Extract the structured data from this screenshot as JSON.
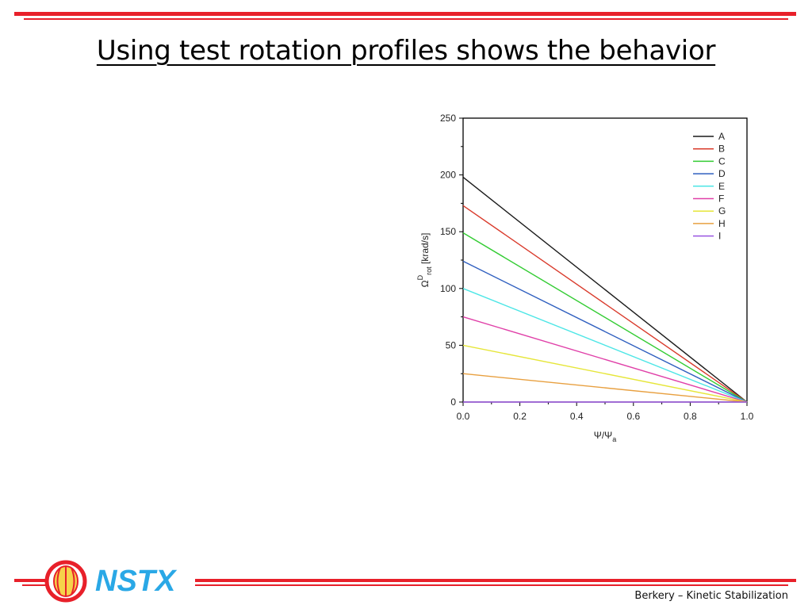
{
  "slide": {
    "title": "Using test rotation profiles shows the behavior",
    "footer_caption": "Berkery – Kinetic Stabilization",
    "logo_text": "NSTX",
    "accent_color": "#e8202a",
    "logo_text_color": "#2aa8e6"
  },
  "chart_data": {
    "type": "line",
    "x_axis": {
      "base": "Ψ/Ψ",
      "sub": "a",
      "range": [
        0.0,
        1.0
      ],
      "ticks": [
        "0.0",
        "0.2",
        "0.4",
        "0.6",
        "0.8",
        "1.0"
      ]
    },
    "y_axis": {
      "base": "Ω",
      "sup": "D",
      "sub": "rot",
      "unit": " [krad/s]",
      "range": [
        0,
        250
      ],
      "ticks": [
        "0",
        "50",
        "100",
        "150",
        "200",
        "250"
      ]
    },
    "grid": false,
    "legend_position": "top-right",
    "x": [
      0.0,
      1.0
    ],
    "series": [
      {
        "name": "A",
        "color": "#1a1a1a",
        "values": [
          198,
          0
        ]
      },
      {
        "name": "B",
        "color": "#d93a2b",
        "values": [
          173,
          0
        ]
      },
      {
        "name": "C",
        "color": "#33cc33",
        "values": [
          149,
          0
        ]
      },
      {
        "name": "D",
        "color": "#2f5fbf",
        "values": [
          124,
          0
        ]
      },
      {
        "name": "E",
        "color": "#4de6e6",
        "values": [
          100,
          0
        ]
      },
      {
        "name": "F",
        "color": "#e040a8",
        "values": [
          75,
          0
        ]
      },
      {
        "name": "G",
        "color": "#e6e63a",
        "values": [
          50,
          0
        ]
      },
      {
        "name": "H",
        "color": "#e8a040",
        "values": [
          25,
          0
        ]
      },
      {
        "name": "I",
        "color": "#9a55e0",
        "values": [
          0,
          0
        ]
      }
    ]
  }
}
